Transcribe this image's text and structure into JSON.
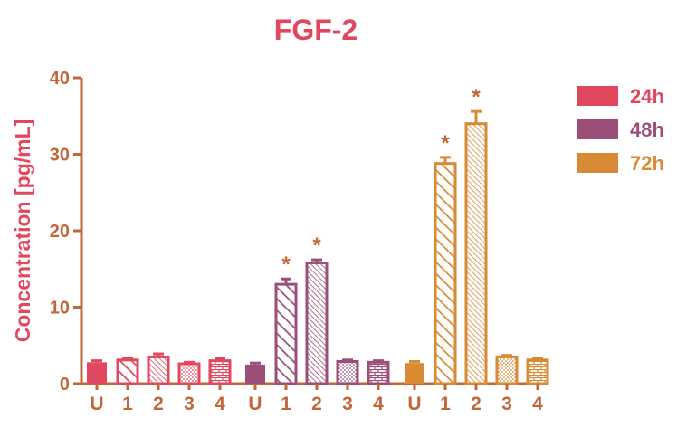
{
  "chart_data": {
    "type": "bar",
    "title": "FGF-2",
    "ylabel": "Concentration [pg/mL]",
    "xlabel": "",
    "ylim": [
      0,
      40
    ],
    "yticks": [
      0,
      10,
      20,
      30,
      40
    ],
    "grid": false,
    "legend_position": "top-right",
    "groups": [
      {
        "name": "24h",
        "color": "#e0485f",
        "categories": [
          "U",
          "1",
          "2",
          "3",
          "4"
        ],
        "values": [
          2.8,
          3.1,
          3.5,
          2.6,
          3.0
        ],
        "errors": [
          0.2,
          0.2,
          0.4,
          0.2,
          0.3
        ],
        "significant": [
          false,
          false,
          false,
          false,
          false
        ]
      },
      {
        "name": "48h",
        "color": "#9b4e78",
        "categories": [
          "U",
          "1",
          "2",
          "3",
          "4"
        ],
        "values": [
          2.5,
          13.0,
          15.8,
          2.9,
          2.8
        ],
        "errors": [
          0.2,
          0.7,
          0.4,
          0.2,
          0.2
        ],
        "significant": [
          false,
          true,
          true,
          false,
          false
        ]
      },
      {
        "name": "72h",
        "color": "#d98a35",
        "categories": [
          "U",
          "1",
          "2",
          "3",
          "4"
        ],
        "values": [
          2.7,
          28.8,
          34.0,
          3.5,
          3.1
        ],
        "errors": [
          0.2,
          0.8,
          1.6,
          0.2,
          0.2
        ],
        "significant": [
          false,
          true,
          true,
          false,
          false
        ]
      }
    ],
    "patterns": [
      "solid",
      "wide-diagonal",
      "fine-diagonal",
      "dots",
      "bricks"
    ],
    "significance_marker": "*",
    "axis_color": "#c0673a",
    "title_color": "#e0485f"
  }
}
